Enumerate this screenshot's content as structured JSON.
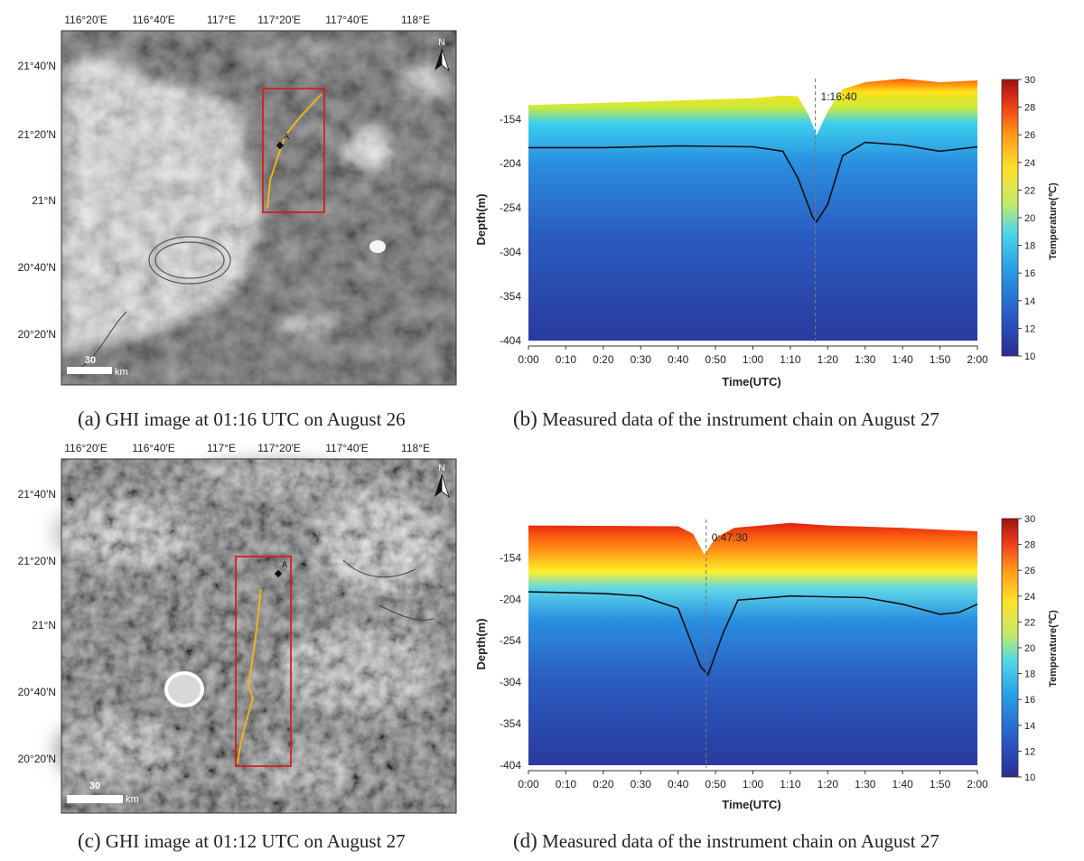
{
  "panels": {
    "a": {
      "caption_prefix": "(a)",
      "caption_text": " GHI image at 01:16 UTC on August 26",
      "lon_ticks": [
        "116°20′E",
        "116°40′E",
        "117°E",
        "117°20′E",
        "117°40′E",
        "118°E"
      ],
      "lat_ticks": [
        "21°40′N",
        "21°20′N",
        "21°N",
        "20°40′N",
        "20°20′N"
      ],
      "scale_value": "30",
      "scale_unit": "km",
      "north_label": "N",
      "point_label": "A"
    },
    "b": {
      "caption_prefix": "(b)",
      "caption_text": " Measured data of the instrument chain on August 27",
      "annotation": "1:16:40"
    },
    "c": {
      "caption_prefix": "(c)",
      "caption_text": " GHI image at 01:12 UTC on August 27",
      "lon_ticks": [
        "116°20′E",
        "116°40′E",
        "117°E",
        "117°20′E",
        "117°40′E",
        "118°E"
      ],
      "lat_ticks": [
        "21°40′N",
        "21°20′N",
        "21°N",
        "20°40′N",
        "20°20′N"
      ],
      "scale_value": "30",
      "scale_unit": "km",
      "north_label": "N",
      "point_label": "A"
    },
    "d": {
      "caption_prefix": "(d)",
      "caption_text": " Measured data of the instrument chain on August 27",
      "annotation": "0:47:30"
    }
  },
  "colors": {
    "track": "#f2b21a",
    "box": "#d42020",
    "contour_line": "#111111",
    "dashed_line": "#777777"
  },
  "chart_data": [
    {
      "type": "heatmap",
      "panel": "b",
      "xlabel": "Time(UTC)",
      "ylabel": "Depth(m)",
      "colorbar_label": "Temperature(℃)",
      "x_ticks": [
        "0:00",
        "0:10",
        "0:20",
        "0:30",
        "0:40",
        "0:50",
        "1:00",
        "1:10",
        "1:20",
        "1:30",
        "1:40",
        "1:50",
        "2:00"
      ],
      "y_ticks": [
        "-154",
        "-204",
        "-254",
        "-304",
        "-354",
        "-404"
      ],
      "colorbar_ticks": [
        "10",
        "12",
        "14",
        "16",
        "18",
        "20",
        "22",
        "24",
        "26",
        "28",
        "30"
      ],
      "xlim_min": [
        0,
        120
      ],
      "ylim": [
        -404,
        -110
      ],
      "clim": [
        10,
        30
      ],
      "annotation_time_min": 76.67,
      "surface_depth": [
        [
          0,
          -138
        ],
        [
          60,
          -130
        ],
        [
          68,
          -127
        ],
        [
          72,
          -128
        ],
        [
          75,
          -150
        ],
        [
          77,
          -172
        ],
        [
          80,
          -145
        ],
        [
          84,
          -120
        ],
        [
          90,
          -112
        ],
        [
          95,
          -110
        ],
        [
          100,
          -108
        ],
        [
          110,
          -112
        ],
        [
          120,
          -110
        ]
      ],
      "isotherm_22C_depth": [
        [
          0,
          -186
        ],
        [
          20,
          -186
        ],
        [
          40,
          -184
        ],
        [
          60,
          -185
        ],
        [
          68,
          -190
        ],
        [
          72,
          -220
        ],
        [
          76,
          -265
        ],
        [
          77,
          -270
        ],
        [
          80,
          -250
        ],
        [
          84,
          -195
        ],
        [
          90,
          -180
        ],
        [
          100,
          -183
        ],
        [
          110,
          -190
        ],
        [
          120,
          -185
        ]
      ]
    },
    {
      "type": "heatmap",
      "panel": "d",
      "xlabel": "Time(UTC)",
      "ylabel": "Depth(m)",
      "colorbar_label": "Temperature(℃)",
      "x_ticks": [
        "0:00",
        "0:10",
        "0:20",
        "0:30",
        "0:40",
        "0:50",
        "1:00",
        "1:10",
        "1:20",
        "1:30",
        "1:40",
        "1:50",
        "2:00"
      ],
      "y_ticks": [
        "-154",
        "-204",
        "-254",
        "-304",
        "-354",
        "-404"
      ],
      "colorbar_ticks": [
        "10",
        "12",
        "14",
        "16",
        "18",
        "20",
        "22",
        "24",
        "26",
        "28",
        "30"
      ],
      "xlim_min": [
        0,
        120
      ],
      "ylim": [
        -404,
        -110
      ],
      "clim": [
        10,
        30
      ],
      "annotation_time_min": 47.5,
      "surface_depth": [
        [
          0,
          -115
        ],
        [
          40,
          -116
        ],
        [
          44,
          -125
        ],
        [
          47,
          -150
        ],
        [
          50,
          -130
        ],
        [
          55,
          -118
        ],
        [
          70,
          -112
        ],
        [
          80,
          -115
        ],
        [
          100,
          -118
        ],
        [
          110,
          -120
        ],
        [
          120,
          -122
        ]
      ],
      "isotherm_22C_depth": [
        [
          0,
          -195
        ],
        [
          20,
          -197
        ],
        [
          30,
          -200
        ],
        [
          40,
          -215
        ],
        [
          46,
          -285
        ],
        [
          48,
          -295
        ],
        [
          52,
          -245
        ],
        [
          56,
          -205
        ],
        [
          70,
          -200
        ],
        [
          90,
          -202
        ],
        [
          100,
          -210
        ],
        [
          110,
          -222
        ],
        [
          115,
          -220
        ],
        [
          120,
          -210
        ]
      ]
    }
  ]
}
